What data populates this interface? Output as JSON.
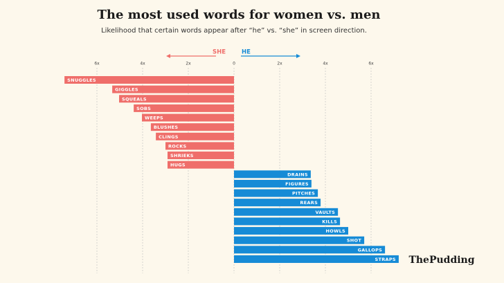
{
  "chart_data": {
    "type": "diverging-bar",
    "title": "The most used words for women vs. men",
    "subtitle": "Likelihood that certain words appear after “he” vs. “she” in screen direction.",
    "categories": [
      "SNUGGLES",
      "GIGGLES",
      "SQUEALS",
      "SOBS",
      "WEEPS",
      "BLUSHES",
      "CLINGS",
      "ROCKS",
      "SHRIEKS",
      "HUGS",
      "DRAINS",
      "FIGURES",
      "PITCHES",
      "REARS",
      "VAULTS",
      "KILLS",
      "HOWLS",
      "SHOT",
      "GALLOPS",
      "STRAPS"
    ],
    "series": [
      {
        "name": "SHE",
        "color": "#ef6e6a",
        "values": [
          -7.42,
          -5.33,
          -5.03,
          -4.39,
          -4.03,
          -3.64,
          -3.42,
          -3.0,
          -2.91,
          -2.91,
          null,
          null,
          null,
          null,
          null,
          null,
          null,
          null,
          null,
          null
        ]
      },
      {
        "name": "HE",
        "color": "#168bd6",
        "values": [
          null,
          null,
          null,
          null,
          null,
          null,
          null,
          null,
          null,
          null,
          3.36,
          3.39,
          3.67,
          3.79,
          4.55,
          4.64,
          5.0,
          5.7,
          6.61,
          7.21
        ]
      }
    ],
    "xlim": [
      -7.5,
      7.5
    ],
    "xticks": [
      {
        "value": -6,
        "label": "6x"
      },
      {
        "value": -4,
        "label": "4x"
      },
      {
        "value": -2,
        "label": "2x"
      },
      0,
      {
        "value": 2,
        "label": "2x"
      },
      {
        "value": 4,
        "label": "4x"
      },
      {
        "value": 6,
        "label": "6x"
      }
    ],
    "grid": true,
    "logo": "ThePudding"
  }
}
